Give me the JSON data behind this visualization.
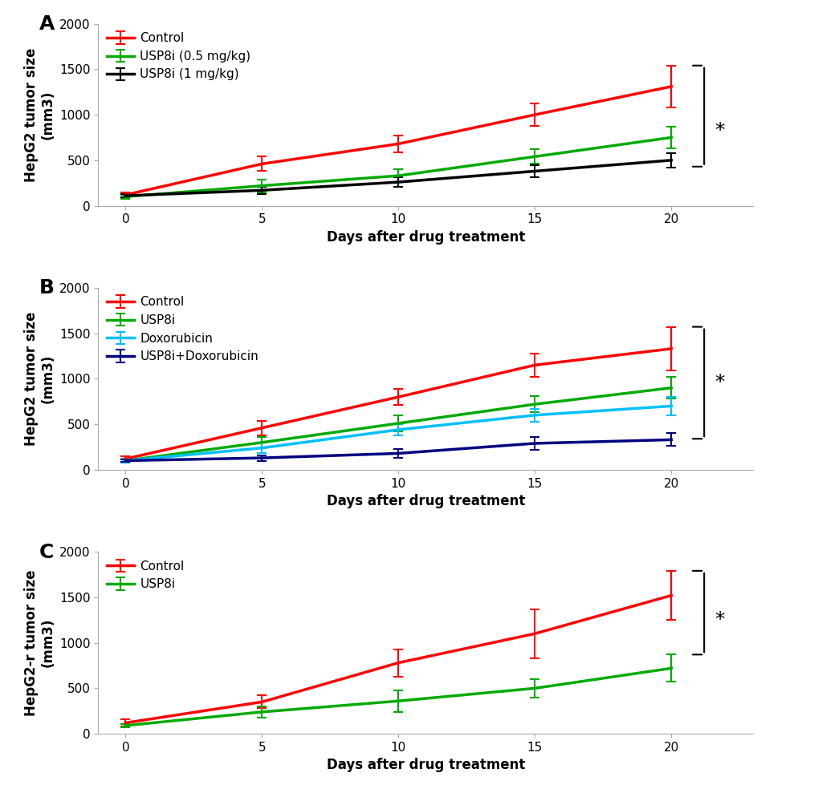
{
  "x": [
    0,
    5,
    10,
    15,
    20
  ],
  "panelA": {
    "label": "A",
    "ylabel": "HepG2 tumor size\n(mm3)",
    "series": [
      {
        "label": "Control",
        "color": "#ff0000",
        "y": [
          120,
          460,
          680,
          1000,
          1310
        ],
        "yerr": [
          30,
          80,
          90,
          120,
          230
        ]
      },
      {
        "label": "USP8i (0.5 mg/kg)",
        "color": "#00aa00",
        "y": [
          100,
          220,
          330,
          540,
          750
        ],
        "yerr": [
          20,
          70,
          70,
          80,
          120
        ]
      },
      {
        "label": "USP8i (1 mg/kg)",
        "color": "#000000",
        "y": [
          110,
          170,
          260,
          380,
          500
        ],
        "yerr": [
          20,
          40,
          50,
          70,
          80
        ]
      }
    ],
    "ylim": [
      0,
      2000
    ],
    "yticks": [
      0,
      500,
      1000,
      1500,
      2000
    ],
    "sig_y_top": 1540,
    "sig_y_mid": 820,
    "sig_y_bot": 430
  },
  "panelB": {
    "label": "B",
    "ylabel": "HepG2 tumor size\n(mm3)",
    "series": [
      {
        "label": "Control",
        "color": "#ff0000",
        "y": [
          120,
          460,
          800,
          1150,
          1330
        ],
        "yerr": [
          30,
          80,
          90,
          130,
          240
        ]
      },
      {
        "label": "USP8i",
        "color": "#00aa00",
        "y": [
          100,
          300,
          510,
          720,
          900
        ],
        "yerr": [
          20,
          60,
          90,
          90,
          120
        ]
      },
      {
        "label": "Doxorubicin",
        "color": "#00bfff",
        "y": [
          100,
          240,
          440,
          600,
          700
        ],
        "yerr": [
          20,
          60,
          60,
          70,
          100
        ]
      },
      {
        "label": "USP8i+Doxorubicin",
        "color": "#000080",
        "y": [
          100,
          130,
          180,
          290,
          330
        ],
        "yerr": [
          15,
          30,
          50,
          70,
          70
        ]
      }
    ],
    "ylim": [
      0,
      2000
    ],
    "yticks": [
      0,
      500,
      1000,
      1500,
      2000
    ],
    "sig_y_top": 1570,
    "sig_y_mid": 955,
    "sig_y_bot": 340
  },
  "panelC": {
    "label": "C",
    "ylabel": "HepG2-r tumor size\n(mm3)",
    "series": [
      {
        "label": "Control",
        "color": "#ff0000",
        "y": [
          120,
          350,
          780,
          1100,
          1520
        ],
        "yerr": [
          40,
          70,
          150,
          270,
          270
        ]
      },
      {
        "label": "USP8i",
        "color": "#00aa00",
        "y": [
          90,
          240,
          360,
          500,
          720
        ],
        "yerr": [
          20,
          60,
          120,
          100,
          150
        ]
      }
    ],
    "ylim": [
      0,
      2000
    ],
    "yticks": [
      0,
      500,
      1000,
      1500,
      2000
    ],
    "sig_y_top": 1790,
    "sig_y_mid": 1255,
    "sig_y_bot": 870
  },
  "xticks": [
    0,
    5,
    10,
    15,
    20
  ],
  "xlabel": "Days after drug treatment",
  "linewidth": 2.5,
  "capsize": 4,
  "legend_fontsize": 11,
  "axis_label_fontsize": 12,
  "tick_fontsize": 11,
  "panel_label_fontsize": 18,
  "star_fontsize": 18
}
